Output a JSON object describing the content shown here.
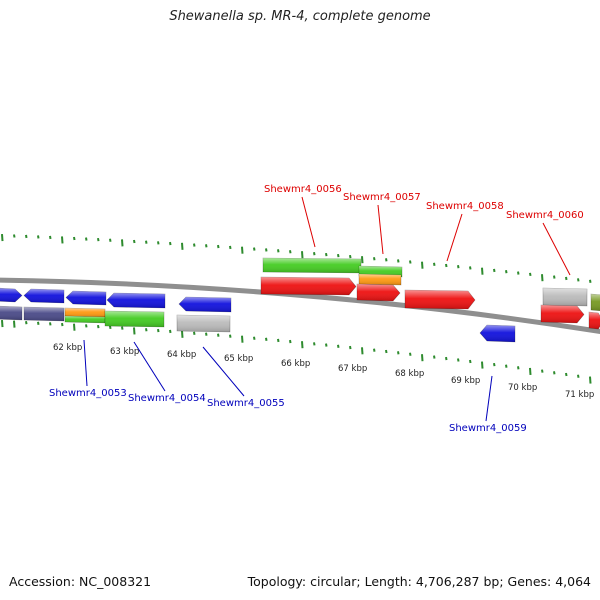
{
  "title": "Shewanella sp. MR-4, complete genome",
  "footer": {
    "accession": "Accession: NC_008321",
    "topology": "Topology: circular; Length: 4,706,287 bp; Genes: 4,064"
  },
  "colors": {
    "background": "#ffffff",
    "backbone": "#8f8f8f",
    "tick": "#2e8b2e",
    "forward_label": "#dd0000",
    "reverse_label": "#0000bb",
    "gene_red": "#ee1111",
    "gene_blue": "#1111dd",
    "gene_green": "#44cc22",
    "gene_orange": "#ff9911",
    "gene_grey": "#bbbbbb",
    "gene_navy": "#4a4a88",
    "gene_olive": "#779922"
  },
  "scale": {
    "unit": "kbp",
    "labels": [
      "62 kbp",
      "63 kbp",
      "64 kbp",
      "65 kbp",
      "66 kbp",
      "67 kbp",
      "68 kbp",
      "69 kbp",
      "70 kbp",
      "71 kbp"
    ]
  },
  "forward_labels": [
    "Shewmr4_0056",
    "Shewmr4_0057",
    "Shewmr4_0058",
    "Shewmr4_0060"
  ],
  "reverse_labels": [
    "Shewmr4_0053",
    "Shewmr4_0054",
    "Shewmr4_0055",
    "Shewmr4_0059"
  ]
}
